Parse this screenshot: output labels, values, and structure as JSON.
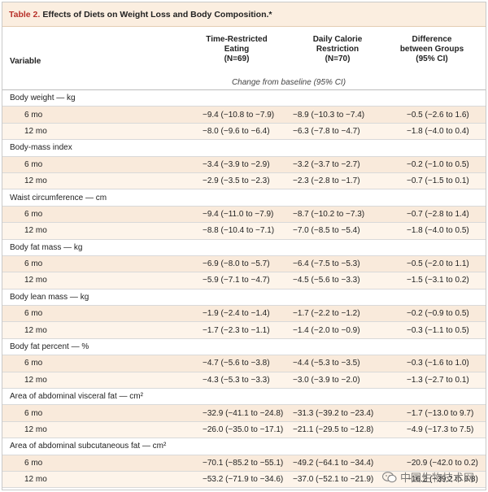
{
  "table": {
    "number": "Table 2.",
    "title": "Effects of Diets on Weight Loss and Body Composition.*",
    "variable_header": "Variable",
    "columns": [
      {
        "line1": "Time-Restricted",
        "line2": "Eating",
        "line3": "(N=69)"
      },
      {
        "line1": "Daily Calorie",
        "line2": "Restriction",
        "line3": "(N=70)"
      },
      {
        "line1": "Difference",
        "line2": "between Groups",
        "line3": "(95% CI)"
      }
    ],
    "subheader": "Change from baseline (95% CI)",
    "groups": [
      {
        "label": "Body weight — kg",
        "rows": [
          {
            "label": "6 mo",
            "c1": "−9.4 (−10.8 to −7.9)",
            "c2": "−8.9 (−10.3 to −7.4)",
            "c3": "−0.5 (−2.6 to 1.6)"
          },
          {
            "label": "12 mo",
            "c1": "−8.0 (−9.6 to −6.4)",
            "c2": "−6.3 (−7.8 to −4.7)",
            "c3": "−1.8 (−4.0 to 0.4)"
          }
        ]
      },
      {
        "label": "Body-mass index",
        "rows": [
          {
            "label": "6 mo",
            "c1": "−3.4 (−3.9 to −2.9)",
            "c2": "−3.2 (−3.7 to −2.7)",
            "c3": "−0.2 (−1.0 to 0.5)"
          },
          {
            "label": "12 mo",
            "c1": "−2.9 (−3.5 to −2.3)",
            "c2": "−2.3 (−2.8 to −1.7)",
            "c3": "−0.7 (−1.5 to 0.1)"
          }
        ]
      },
      {
        "label": "Waist circumference — cm",
        "rows": [
          {
            "label": "6 mo",
            "c1": "−9.4 (−11.0 to −7.9)",
            "c2": "−8.7 (−10.2 to −7.3)",
            "c3": "−0.7 (−2.8 to 1.4)"
          },
          {
            "label": "12 mo",
            "c1": "−8.8 (−10.4 to −7.1)",
            "c2": "−7.0 (−8.5 to −5.4)",
            "c3": "−1.8 (−4.0 to 0.5)"
          }
        ]
      },
      {
        "label": "Body fat mass — kg",
        "rows": [
          {
            "label": "6 mo",
            "c1": "−6.9 (−8.0 to −5.7)",
            "c2": "−6.4 (−7.5 to −5.3)",
            "c3": "−0.5 (−2.0 to 1.1)"
          },
          {
            "label": "12 mo",
            "c1": "−5.9 (−7.1 to −4.7)",
            "c2": "−4.5 (−5.6 to −3.3)",
            "c3": "−1.5 (−3.1 to 0.2)"
          }
        ]
      },
      {
        "label": "Body lean mass — kg",
        "rows": [
          {
            "label": "6 mo",
            "c1": "−1.9 (−2.4 to −1.4)",
            "c2": "−1.7 (−2.2 to −1.2)",
            "c3": "−0.2 (−0.9 to 0.5)"
          },
          {
            "label": "12 mo",
            "c1": "−1.7 (−2.3 to −1.1)",
            "c2": "−1.4 (−2.0 to −0.9)",
            "c3": "−0.3 (−1.1 to 0.5)"
          }
        ]
      },
      {
        "label": "Body fat percent — %",
        "rows": [
          {
            "label": "6 mo",
            "c1": "−4.7 (−5.6 to −3.8)",
            "c2": "−4.4 (−5.3 to −3.5)",
            "c3": "−0.3 (−1.6 to 1.0)"
          },
          {
            "label": "12 mo",
            "c1": "−4.3 (−5.3 to −3.3)",
            "c2": "−3.0 (−3.9 to −2.0)",
            "c3": "−1.3 (−2.7 to 0.1)"
          }
        ]
      },
      {
        "label": "Area of abdominal visceral fat — cm²",
        "rows": [
          {
            "label": "6 mo",
            "c1": "−32.9 (−41.1 to −24.8)",
            "c2": "−31.3 (−39.2 to −23.4)",
            "c3": "−1.7 (−13.0 to 9.7)"
          },
          {
            "label": "12 mo",
            "c1": "−26.0 (−35.0 to −17.1)",
            "c2": "−21.1 (−29.5 to −12.8)",
            "c3": "−4.9 (−17.3 to 7.5)"
          }
        ]
      },
      {
        "label": "Area of abdominal subcutaneous fat — cm²",
        "rows": [
          {
            "label": "6 mo",
            "c1": "−70.1 (−85.2 to −55.1)",
            "c2": "−49.2 (−64.1 to −34.4)",
            "c3": "−20.9 (−42.0 to 0.2)"
          },
          {
            "label": "12 mo",
            "c1": "−53.2 (−71.9 to −34.6)",
            "c2": "−37.0 (−52.1 to −21.9)",
            "c3": "−16.2 (−39.2 to 6.8)"
          }
        ]
      }
    ]
  },
  "watermark": {
    "text": "中国生物技术网",
    "icon": "wechat-icon"
  },
  "colors": {
    "accent": "#b8322a",
    "title_bg": "#fbeee0",
    "row_bg": "#f9eadb"
  }
}
